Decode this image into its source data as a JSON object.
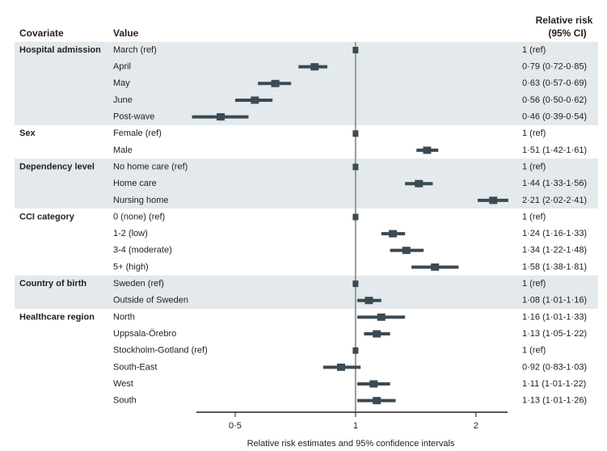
{
  "chart_data": {
    "type": "forest",
    "columns": [
      "Covariate",
      "Value",
      "Relative risk",
      "(95% CI)"
    ],
    "xlabel": "Relative risk estimates and 95% confidence intervals",
    "xscale": "log",
    "xlim": [
      0.4,
      2.4
    ],
    "xticks": [
      {
        "value": 0.5,
        "label": "0·5"
      },
      1,
      2
    ],
    "color": "#3b4a53",
    "ci_color": "#3b4a53",
    "band_color": "#e3e9ec",
    "groups": [
      {
        "name": "Hospital admission",
        "categories": [
          "March (ref)",
          "April",
          "May",
          "June",
          "Post-wave"
        ],
        "values": [
          1,
          0.79,
          0.63,
          0.56,
          0.46
        ],
        "lower": [
          null,
          0.72,
          0.57,
          0.5,
          0.39
        ],
        "upper": [
          null,
          0.85,
          0.69,
          0.62,
          0.54
        ],
        "value_labels": [
          "1 (ref)",
          "0·79 (0·72-0·85)",
          "0·63 (0·57-0·69)",
          "0·56 (0·50-0·62)",
          "0·46 (0·39-0·54)"
        ]
      },
      {
        "name": "Sex",
        "categories": [
          "Female (ref)",
          "Male"
        ],
        "values": [
          1,
          1.51
        ],
        "lower": [
          null,
          1.42
        ],
        "upper": [
          null,
          1.61
        ],
        "value_labels": [
          "1 (ref)",
          "1·51 (1·42-1·61)"
        ]
      },
      {
        "name": "Dependency level",
        "categories": [
          "No home care (ref)",
          "Home care",
          "Nursing home"
        ],
        "values": [
          1,
          1.44,
          2.21
        ],
        "lower": [
          null,
          1.33,
          2.02
        ],
        "upper": [
          null,
          1.56,
          2.41
        ],
        "value_labels": [
          "1 (ref)",
          "1·44 (1·33-1·56)",
          "2·21 (2·02-2·41)"
        ]
      },
      {
        "name": "CCI category",
        "categories": [
          "0 (none) (ref)",
          "1-2 (low)",
          "3-4 (moderate)",
          "5+ (high)"
        ],
        "values": [
          1,
          1.24,
          1.34,
          1.58
        ],
        "lower": [
          null,
          1.16,
          1.22,
          1.38
        ],
        "upper": [
          null,
          1.33,
          1.48,
          1.81
        ],
        "value_labels": [
          "1 (ref)",
          "1·24 (1·16-1·33)",
          "1·34 (1·22-1·48)",
          "1·58 (1·38-1·81)"
        ]
      },
      {
        "name": "Country of birth",
        "categories": [
          "Sweden (ref)",
          "Outside of Sweden"
        ],
        "values": [
          1,
          1.08
        ],
        "lower": [
          null,
          1.01
        ],
        "upper": [
          null,
          1.16
        ],
        "value_labels": [
          "1 (ref)",
          "1·08 (1·01-1·16)"
        ]
      },
      {
        "name": "Healthcare region",
        "categories": [
          "North",
          "Uppsala-Örebro",
          "Stockholm-Gotland (ref)",
          "South-East",
          "West",
          "South"
        ],
        "values": [
          1.16,
          1.13,
          1,
          0.92,
          1.11,
          1.13
        ],
        "lower": [
          1.01,
          1.05,
          null,
          0.83,
          1.01,
          1.01
        ],
        "upper": [
          1.33,
          1.22,
          null,
          1.03,
          1.22,
          1.26
        ],
        "value_labels": [
          "1·16 (1·01-1·33)",
          "1·13 (1·05-1·22)",
          "1 (ref)",
          "0·92 (0·83-1·03)",
          "1·11 (1·01-1·22)",
          "1·13 (1·01-1·26)"
        ]
      }
    ]
  }
}
